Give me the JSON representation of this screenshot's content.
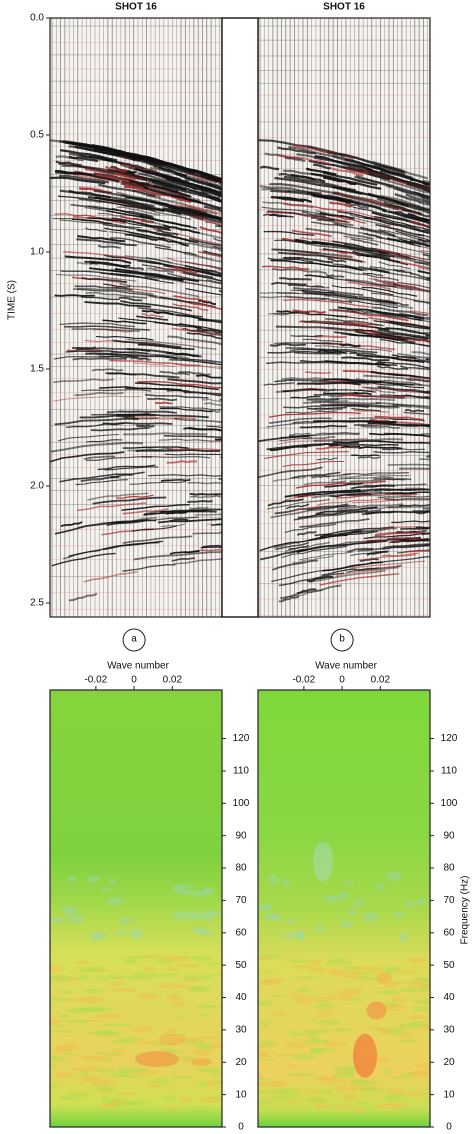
{
  "chart_data": [
    {
      "type": "seismic",
      "title": "SHOT 16",
      "ylabel": "TIME (S)",
      "ylim": [
        0,
        2.56
      ],
      "yticks": [
        {
          "value": 0,
          "label": "0.0"
        },
        0.5,
        {
          "value": 1,
          "label": "1.0"
        },
        1.5,
        {
          "value": 2,
          "label": "2.0"
        },
        2.5
      ]
    },
    {
      "type": "seismic",
      "title": "SHOT 16",
      "ylim": [
        0,
        2.56
      ]
    },
    {
      "type": "spectrum",
      "panel_label": "a",
      "xlabel": "Wave number",
      "xlim": [
        -0.044,
        0.046
      ],
      "xticks": [
        -0.02,
        0,
        0.02
      ],
      "ylim": [
        0,
        135
      ],
      "yticks": [
        0,
        10,
        20,
        30,
        40,
        50,
        60,
        70,
        80,
        90,
        100,
        110,
        120
      ]
    },
    {
      "type": "spectrum",
      "panel_label": "b",
      "xlabel": "Wave number",
      "ylabel": "Frequency (Hz)",
      "xlim": [
        -0.044,
        0.046
      ],
      "xticks": [
        -0.02,
        0,
        0.02
      ],
      "ylim": [
        0,
        135
      ],
      "yticks": [
        0,
        10,
        20,
        30,
        40,
        50,
        60,
        70,
        80,
        90,
        100,
        110,
        120
      ]
    }
  ]
}
